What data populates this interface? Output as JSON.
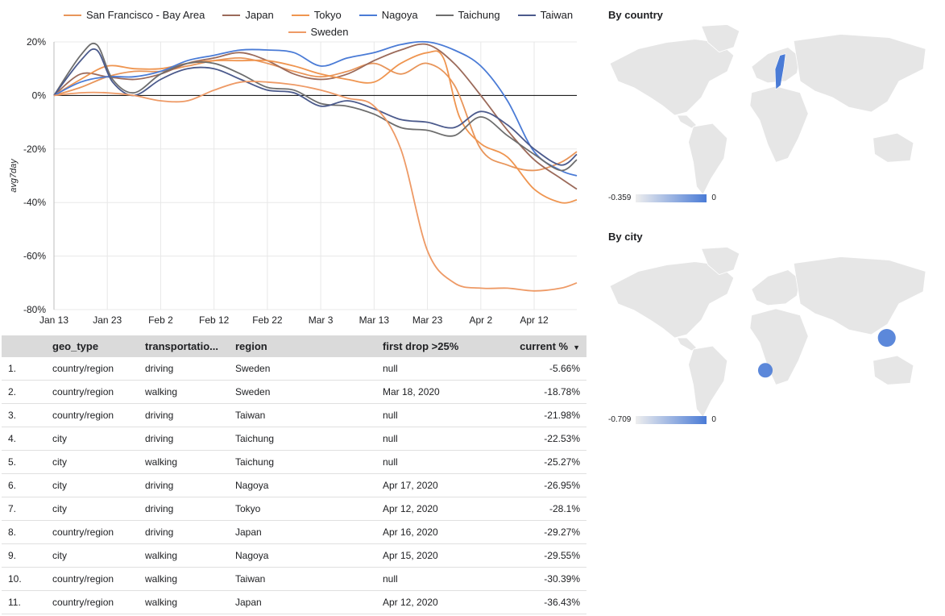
{
  "chart_data": {
    "type": "line",
    "ylabel": "avg7day",
    "ylim": [
      -80,
      20
    ],
    "yticks": [
      20,
      0,
      -20,
      -40,
      -60,
      -80
    ],
    "ytick_labels": [
      "20%",
      "0%",
      "-20%",
      "-40%",
      "-60%",
      "-80%"
    ],
    "xlim": [
      "2020-01-13",
      "2020-04-20"
    ],
    "xticks": [
      "2020-01-13",
      "2020-01-23",
      "2020-02-02",
      "2020-02-12",
      "2020-02-22",
      "2020-03-03",
      "2020-03-13",
      "2020-03-23",
      "2020-04-02",
      "2020-04-12"
    ],
    "xtick_labels": [
      "Jan 13",
      "Jan 23",
      "Feb 2",
      "Feb 12",
      "Feb 22",
      "Mar 3",
      "Mar 13",
      "Mar 23",
      "Apr 2",
      "Apr 12"
    ],
    "grid": true,
    "legend": "top",
    "series": [
      {
        "name": "San Francisco - Bay Area",
        "color": "#e8955a",
        "points": [
          [
            "2020-01-13",
            0
          ],
          [
            "2020-01-18",
            3
          ],
          [
            "2020-01-23",
            7
          ],
          [
            "2020-01-28",
            9
          ],
          [
            "2020-02-02",
            9
          ],
          [
            "2020-02-07",
            11
          ],
          [
            "2020-02-12",
            13
          ],
          [
            "2020-02-17",
            14
          ],
          [
            "2020-02-22",
            12
          ],
          [
            "2020-02-27",
            9
          ],
          [
            "2020-03-03",
            7
          ],
          [
            "2020-03-08",
            9
          ],
          [
            "2020-03-13",
            12
          ],
          [
            "2020-03-18",
            8
          ],
          [
            "2020-03-23",
            12
          ],
          [
            "2020-03-28",
            4
          ],
          [
            "2020-04-02",
            -20
          ],
          [
            "2020-04-07",
            -26
          ],
          [
            "2020-04-12",
            -28
          ],
          [
            "2020-04-17",
            -25
          ],
          [
            "2020-04-20",
            -21
          ]
        ]
      },
      {
        "name": "Japan",
        "color": "#9b6a5a",
        "points": [
          [
            "2020-01-13",
            0
          ],
          [
            "2020-01-18",
            8
          ],
          [
            "2020-01-23",
            7
          ],
          [
            "2020-01-28",
            6
          ],
          [
            "2020-02-02",
            8
          ],
          [
            "2020-02-07",
            12
          ],
          [
            "2020-02-12",
            14
          ],
          [
            "2020-02-17",
            16
          ],
          [
            "2020-02-22",
            13
          ],
          [
            "2020-02-27",
            8
          ],
          [
            "2020-03-03",
            6
          ],
          [
            "2020-03-08",
            8
          ],
          [
            "2020-03-13",
            13
          ],
          [
            "2020-03-18",
            17
          ],
          [
            "2020-03-23",
            19
          ],
          [
            "2020-03-28",
            12
          ],
          [
            "2020-04-02",
            0
          ],
          [
            "2020-04-07",
            -13
          ],
          [
            "2020-04-12",
            -24
          ],
          [
            "2020-04-17",
            -31
          ],
          [
            "2020-04-20",
            -35
          ]
        ]
      },
      {
        "name": "Tokyo",
        "color": "#ef9550",
        "points": [
          [
            "2020-01-13",
            0
          ],
          [
            "2020-01-18",
            6
          ],
          [
            "2020-01-23",
            11
          ],
          [
            "2020-01-28",
            10
          ],
          [
            "2020-02-02",
            10
          ],
          [
            "2020-02-07",
            12
          ],
          [
            "2020-02-12",
            13
          ],
          [
            "2020-02-17",
            13
          ],
          [
            "2020-02-22",
            13
          ],
          [
            "2020-02-27",
            11
          ],
          [
            "2020-03-03",
            8
          ],
          [
            "2020-03-08",
            6
          ],
          [
            "2020-03-13",
            5
          ],
          [
            "2020-03-18",
            12
          ],
          [
            "2020-03-23",
            16
          ],
          [
            "2020-03-26",
            14
          ],
          [
            "2020-03-29",
            -8
          ],
          [
            "2020-04-02",
            -18
          ],
          [
            "2020-04-07",
            -23
          ],
          [
            "2020-04-12",
            -35
          ],
          [
            "2020-04-17",
            -40
          ],
          [
            "2020-04-20",
            -39
          ]
        ]
      },
      {
        "name": "Nagoya",
        "color": "#4a7bd6",
        "points": [
          [
            "2020-01-13",
            0
          ],
          [
            "2020-01-18",
            5
          ],
          [
            "2020-01-23",
            7
          ],
          [
            "2020-01-28",
            7
          ],
          [
            "2020-02-02",
            9
          ],
          [
            "2020-02-07",
            13
          ],
          [
            "2020-02-12",
            15
          ],
          [
            "2020-02-17",
            17
          ],
          [
            "2020-02-22",
            17
          ],
          [
            "2020-02-27",
            16
          ],
          [
            "2020-03-03",
            11
          ],
          [
            "2020-03-08",
            14
          ],
          [
            "2020-03-13",
            16
          ],
          [
            "2020-03-18",
            19
          ],
          [
            "2020-03-23",
            20
          ],
          [
            "2020-03-28",
            17
          ],
          [
            "2020-04-02",
            11
          ],
          [
            "2020-04-07",
            -2
          ],
          [
            "2020-04-12",
            -21
          ],
          [
            "2020-04-17",
            -28
          ],
          [
            "2020-04-20",
            -30
          ]
        ]
      },
      {
        "name": "Taichung",
        "color": "#6d6d6d",
        "points": [
          [
            "2020-01-13",
            0
          ],
          [
            "2020-01-18",
            15
          ],
          [
            "2020-01-21",
            19
          ],
          [
            "2020-01-24",
            6
          ],
          [
            "2020-01-28",
            1
          ],
          [
            "2020-02-02",
            8
          ],
          [
            "2020-02-07",
            12
          ],
          [
            "2020-02-12",
            12
          ],
          [
            "2020-02-17",
            8
          ],
          [
            "2020-02-22",
            3
          ],
          [
            "2020-02-27",
            2
          ],
          [
            "2020-03-03",
            -3
          ],
          [
            "2020-03-08",
            -4
          ],
          [
            "2020-03-13",
            -7
          ],
          [
            "2020-03-18",
            -12
          ],
          [
            "2020-03-23",
            -13
          ],
          [
            "2020-03-28",
            -15
          ],
          [
            "2020-04-02",
            -8
          ],
          [
            "2020-04-07",
            -15
          ],
          [
            "2020-04-12",
            -22
          ],
          [
            "2020-04-17",
            -28
          ],
          [
            "2020-04-20",
            -24
          ]
        ]
      },
      {
        "name": "Taiwan",
        "color": "#4b5a8c",
        "points": [
          [
            "2020-01-13",
            0
          ],
          [
            "2020-01-18",
            13
          ],
          [
            "2020-01-21",
            17
          ],
          [
            "2020-01-24",
            5
          ],
          [
            "2020-01-28",
            0
          ],
          [
            "2020-02-02",
            6
          ],
          [
            "2020-02-07",
            10
          ],
          [
            "2020-02-12",
            10
          ],
          [
            "2020-02-17",
            6
          ],
          [
            "2020-02-22",
            2
          ],
          [
            "2020-02-27",
            1
          ],
          [
            "2020-03-03",
            -4
          ],
          [
            "2020-03-08",
            -2
          ],
          [
            "2020-03-13",
            -5
          ],
          [
            "2020-03-18",
            -9
          ],
          [
            "2020-03-23",
            -10
          ],
          [
            "2020-03-28",
            -12
          ],
          [
            "2020-04-02",
            -6
          ],
          [
            "2020-04-07",
            -11
          ],
          [
            "2020-04-12",
            -20
          ],
          [
            "2020-04-17",
            -26
          ],
          [
            "2020-04-20",
            -22
          ]
        ]
      },
      {
        "name": "Sweden",
        "color": "#ee9a66",
        "points": [
          [
            "2020-01-13",
            0
          ],
          [
            "2020-01-18",
            1
          ],
          [
            "2020-01-23",
            1
          ],
          [
            "2020-01-28",
            0
          ],
          [
            "2020-02-02",
            -2
          ],
          [
            "2020-02-07",
            -2
          ],
          [
            "2020-02-12",
            2
          ],
          [
            "2020-02-17",
            5
          ],
          [
            "2020-02-22",
            5
          ],
          [
            "2020-02-27",
            4
          ],
          [
            "2020-03-03",
            2
          ],
          [
            "2020-03-08",
            -1
          ],
          [
            "2020-03-13",
            -4
          ],
          [
            "2020-03-18",
            -20
          ],
          [
            "2020-03-23",
            -58
          ],
          [
            "2020-03-28",
            -70
          ],
          [
            "2020-04-02",
            -72
          ],
          [
            "2020-04-07",
            -72
          ],
          [
            "2020-04-12",
            -73
          ],
          [
            "2020-04-17",
            -72
          ],
          [
            "2020-04-20",
            -70
          ]
        ]
      }
    ]
  },
  "table": {
    "columns": [
      "geo_type",
      "transportatio...",
      "region",
      "first drop >25%",
      "current %"
    ],
    "sort_indicator": "▼",
    "rows": [
      {
        "num": "1.",
        "geo_type": "country/region",
        "transportation": "driving",
        "region": "Sweden",
        "first_drop": "null",
        "current": "-5.66%"
      },
      {
        "num": "2.",
        "geo_type": "country/region",
        "transportation": "walking",
        "region": "Sweden",
        "first_drop": "Mar 18, 2020",
        "current": "-18.78%"
      },
      {
        "num": "3.",
        "geo_type": "country/region",
        "transportation": "driving",
        "region": "Taiwan",
        "first_drop": "null",
        "current": "-21.98%"
      },
      {
        "num": "4.",
        "geo_type": "city",
        "transportation": "driving",
        "region": "Taichung",
        "first_drop": "null",
        "current": "-22.53%"
      },
      {
        "num": "5.",
        "geo_type": "city",
        "transportation": "walking",
        "region": "Taichung",
        "first_drop": "null",
        "current": "-25.27%"
      },
      {
        "num": "6.",
        "geo_type": "city",
        "transportation": "driving",
        "region": "Nagoya",
        "first_drop": "Apr 17, 2020",
        "current": "-26.95%"
      },
      {
        "num": "7.",
        "geo_type": "city",
        "transportation": "driving",
        "region": "Tokyo",
        "first_drop": "Apr 12, 2020",
        "current": "-28.1%"
      },
      {
        "num": "8.",
        "geo_type": "country/region",
        "transportation": "driving",
        "region": "Japan",
        "first_drop": "Apr 16, 2020",
        "current": "-29.27%"
      },
      {
        "num": "9.",
        "geo_type": "city",
        "transportation": "walking",
        "region": "Nagoya",
        "first_drop": "Apr 15, 2020",
        "current": "-29.55%"
      },
      {
        "num": "10.",
        "geo_type": "country/region",
        "transportation": "walking",
        "region": "Taiwan",
        "first_drop": "null",
        "current": "-30.39%"
      },
      {
        "num": "11.",
        "geo_type": "country/region",
        "transportation": "walking",
        "region": "Japan",
        "first_drop": "Apr 12, 2020",
        "current": "-36.43%"
      }
    ]
  },
  "maps": {
    "country": {
      "title": "By country",
      "scale_min": "-0.359",
      "scale_max": "0",
      "highlight": "Sweden",
      "color": "#4a7bd6"
    },
    "city": {
      "title": "By city",
      "scale_min": "-0.709",
      "scale_max": "0",
      "color": "#4a7bd6",
      "bubbles": [
        {
          "name": "Japan/Taiwan"
        },
        {
          "name": "West Africa"
        }
      ]
    }
  }
}
